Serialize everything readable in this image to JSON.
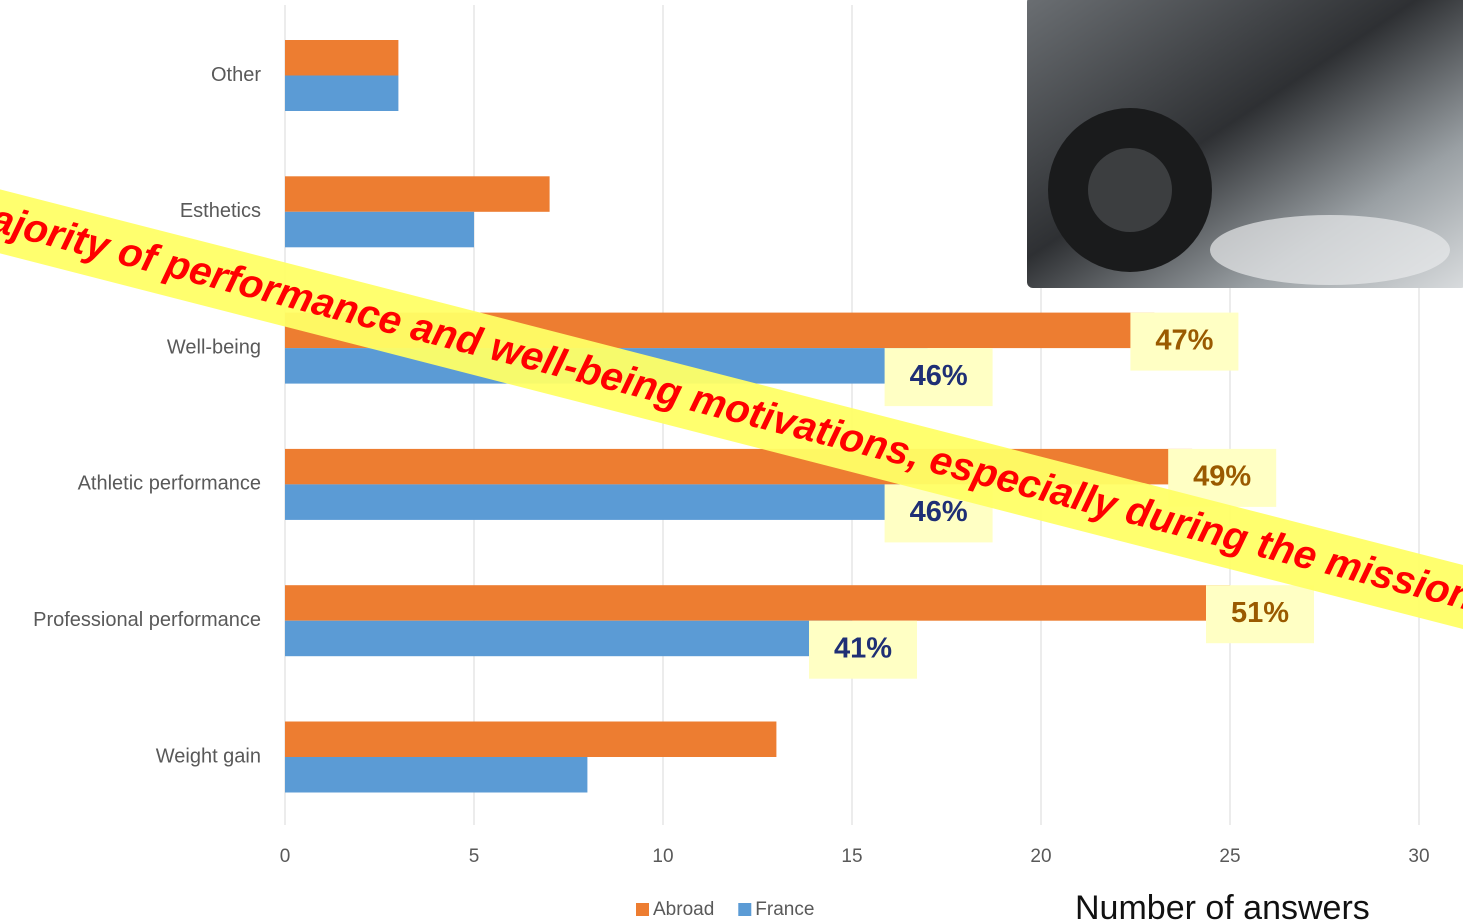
{
  "chart_data": {
    "type": "bar",
    "orientation": "horizontal",
    "categories": [
      "Other",
      "Esthetics",
      "Well-being",
      "Athletic performance",
      "Professional performance",
      "Weight gain"
    ],
    "series": [
      {
        "name": "Abroad",
        "color": "#ed7d31",
        "values": [
          3,
          7,
          23,
          24,
          25,
          13
        ],
        "percent_labels": [
          null,
          null,
          "47%",
          "49%",
          "51%",
          null
        ],
        "label_color": "#9a5a00"
      },
      {
        "name": "France",
        "color": "#5b9bd5",
        "values": [
          3,
          5,
          17,
          17,
          15,
          8
        ],
        "percent_labels": [
          null,
          null,
          "46%",
          "46%",
          "41%",
          null
        ],
        "label_color": "#1f2f75"
      }
    ],
    "xlim": [
      0,
      30
    ],
    "xticks": [
      0,
      5,
      10,
      15,
      20,
      25,
      30
    ],
    "grid": true,
    "legend": "bottom",
    "xlabel": "Number of answers",
    "banner": "Majority of performance and well-being motivations, especially during the mission"
  }
}
